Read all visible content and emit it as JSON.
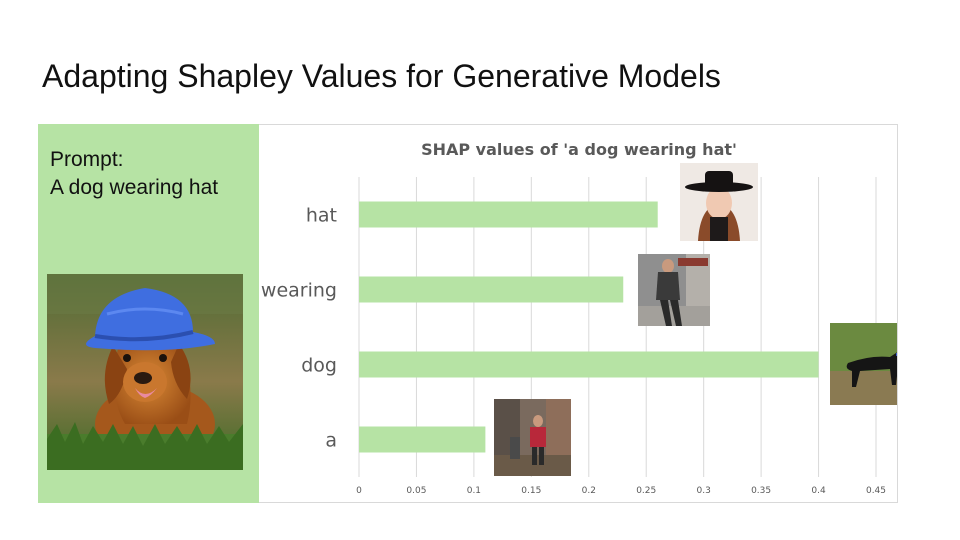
{
  "slide": {
    "title": "Adapting Shapley Values for Generative Models"
  },
  "prompt_panel": {
    "label": "Prompt:",
    "text": "A dog wearing hat"
  },
  "colors": {
    "panel_bg": "#b6e3a4",
    "bar": "#b6e3a4",
    "grid": "#d9d9d9",
    "axis_text": "#595959"
  },
  "chart_data": {
    "type": "bar",
    "orientation": "horizontal",
    "title": "SHAP values of 'a dog wearing hat'",
    "categories": [
      "hat",
      "wearing",
      "dog",
      "a"
    ],
    "values": [
      0.26,
      0.23,
      0.4,
      0.11
    ],
    "xlim": [
      0,
      0.45
    ],
    "xticks": [
      "0",
      "0.05",
      "0.1",
      "0.15",
      "0.2",
      "0.25",
      "0.3",
      "0.35",
      "0.4",
      "0.45"
    ],
    "grid": true,
    "legend": "none"
  }
}
